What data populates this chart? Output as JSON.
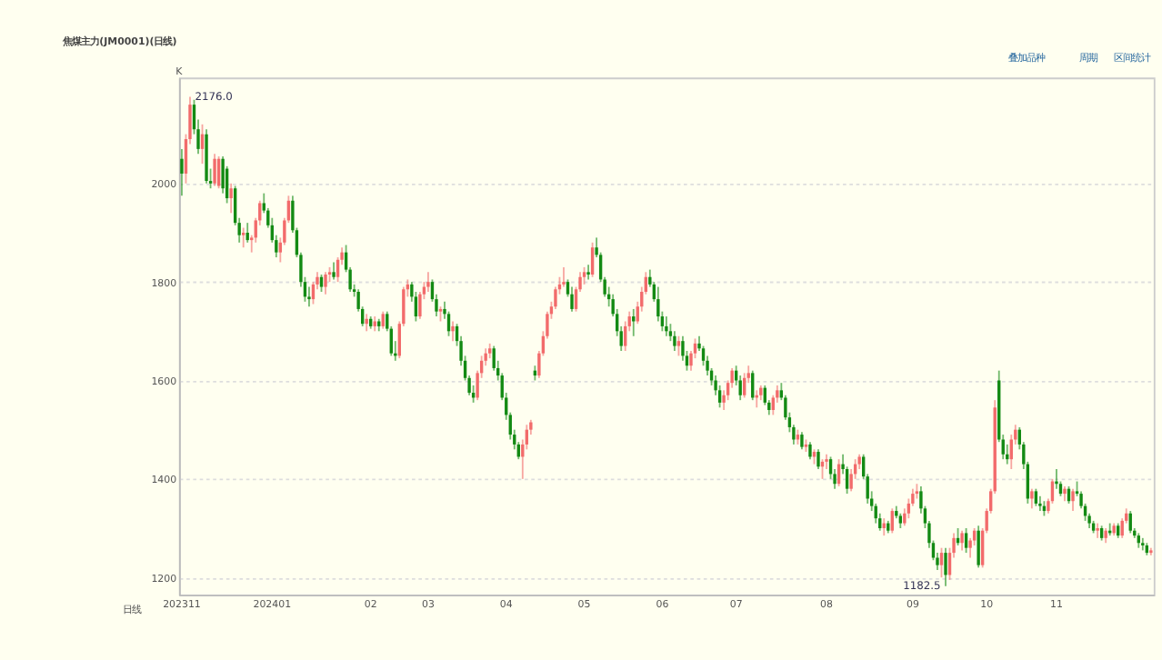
{
  "chart_data": {
    "type": "candlestick",
    "title": "焦煤主力(JM0001)(日线)",
    "annotations": [
      "K",
      "日线",
      "叠加品种",
      "周期",
      "区间统计",
      "2176.0",
      "1182.5"
    ],
    "colors": [
      "#138a13",
      "#f26b6b",
      "#f26b6b",
      "#138a13",
      "#138a13",
      "#f26b6b",
      "#138a13",
      "#138a13",
      "#f26b6b",
      "#f26b6b",
      "#138a13",
      "#138a13",
      "#f26b6b",
      "#138a13",
      "#138a13",
      "#f26b6b",
      "#138a13",
      "#f26b6b",
      "#f26b6b",
      "#f26b6b",
      "#138a13",
      "#138a13",
      "#138a13",
      "#138a13",
      "#f26b6b",
      "#f26b6b",
      "#f26b6b",
      "#138a13",
      "#138a13",
      "#138a13",
      "#138a13",
      "#138a13",
      "#f26b6b",
      "#f26b6b",
      "#138a13",
      "#f26b6b",
      "#f26b6b",
      "#138a13",
      "#f26b6b",
      "#f26b6b",
      "#138a13",
      "#138a13",
      "#138a13",
      "#138a13",
      "#138a13",
      "#f26b6b",
      "#138a13",
      "#f26b6b",
      "#138a13",
      "#f26b6b",
      "#138a13",
      "#138a13",
      "#138a13",
      "#f26b6b",
      "#f26b6b",
      "#f26b6b",
      "#138a13",
      "#138a13",
      "#f26b6b",
      "#f26b6b",
      "#f26b6b",
      "#138a13",
      "#138a13",
      "#f26b6b",
      "#138a13",
      "#138a13",
      "#f26b6b",
      "#138a13",
      "#138a13",
      "#138a13",
      "#138a13",
      "#138a13",
      "#f26b6b",
      "#f26b6b",
      "#f26b6b",
      "#f26b6b",
      "#138a13",
      "#138a13",
      "#138a13",
      "#138a13",
      "#138a13",
      "#138a13",
      "#138a13",
      "#f26b6b",
      "#f26b6b",
      "#f26b6b",
      "#138a13",
      "#f26b6b",
      "#f26b6b",
      "#f26b6b",
      "#f26b6b",
      "#f26b6b",
      "#f26b6b",
      "#f26b6b",
      "#138a13",
      "#138a13",
      "#f26b6b",
      "#f26b6b",
      "#f26b6b",
      "#138a13",
      "#f26b6b",
      "#138a13",
      "#138a13",
      "#138a13",
      "#138a13",
      "#138a13",
      "#138a13",
      "#138a13",
      "#f26b6b",
      "#f26b6b",
      "#138a13",
      "#f26b6b",
      "#f26b6b",
      "#f26b6b",
      "#138a13",
      "#138a13",
      "#138a13",
      "#138a13",
      "#138a13",
      "#138a13",
      "#138a13",
      "#f26b6b",
      "#138a13",
      "#138a13",
      "#f26b6b",
      "#f26b6b",
      "#138a13",
      "#138a13",
      "#138a13",
      "#138a13",
      "#138a13",
      "#138a13",
      "#f26b6b",
      "#f26b6b",
      "#f26b6b",
      "#138a13",
      "#138a13",
      "#f26b6b",
      "#f26b6b",
      "#138a13",
      "#f26b6b",
      "#f26b6b",
      "#138a13",
      "#138a13",
      "#f26b6b",
      "#f26b6b",
      "#138a13",
      "#138a13",
      "#138a13",
      "#138a13",
      "#f26b6b",
      "#138a13",
      "#f26b6b",
      "#138a13",
      "#f26b6b",
      "#138a13",
      "#f26b6b",
      "#f26b6b",
      "#138a13",
      "#138a13",
      "#f26b6b",
      "#138a13",
      "#138a13",
      "#f26b6b",
      "#f26b6b",
      "#f26b6b",
      "#138a13",
      "#138a13",
      "#138a13",
      "#138a13",
      "#138a13",
      "#f26b6b",
      "#138a13",
      "#f26b6b",
      "#138a13",
      "#138a13",
      "#f26b6b",
      "#f26b6b",
      "#f26b6b",
      "#f26b6b",
      "#138a13",
      "#138a13",
      "#138a13",
      "#138a13",
      "#138a13",
      "#f26b6b",
      "#138a13",
      "#f26b6b",
      "#f26b6b",
      "#138a13",
      "#f26b6b",
      "#138a13",
      "#f26b6b",
      "#f26b6b",
      "#138a13",
      "#f26b6b",
      "#f26b6b",
      "#f26b6b",
      "#f26b6b",
      "#138a13",
      "#138a13",
      "#138a13",
      "#f26b6b",
      "#f26b6b",
      "#138a13",
      "#138a13",
      "#138a13",
      "#f26b6b",
      "#138a13",
      "#138a13",
      "#138a13",
      "#f26b6b",
      "#f26b6b",
      "#138a13",
      "#138a13",
      "#f26b6b",
      "#138a13",
      "#f26b6b",
      "#138a13",
      "#138a13",
      "#138a13",
      "#138a13",
      "#138a13",
      "#f26b6b",
      "#138a13",
      "#f26b6b",
      "#138a13",
      "#f26b6b",
      "#138a13",
      "#f26b6b",
      "#f26b6b",
      "#138a13",
      "#138a13",
      "#138a13",
      "#138a13",
      "#138a13",
      "#f26b6b"
    ],
    "ylim": [
      1165,
      2215
    ],
    "yticks": [
      1200,
      1400,
      1600,
      1800,
      2000
    ],
    "grid": "y",
    "categories": [
      "202311",
      null,
      null,
      null,
      null,
      null,
      null,
      null,
      null,
      null,
      null,
      null,
      null,
      null,
      null,
      null,
      null,
      null,
      null,
      null,
      null,
      null,
      "202401",
      null,
      null,
      null,
      null,
      null,
      null,
      null,
      null,
      null,
      null,
      null,
      null,
      null,
      null,
      null,
      null,
      null,
      null,
      null,
      null,
      null,
      null,
      null,
      "02",
      null,
      null,
      null,
      null,
      null,
      null,
      null,
      null,
      null,
      null,
      null,
      null,
      null,
      "03",
      null,
      null,
      null,
      null,
      null,
      null,
      null,
      null,
      null,
      null,
      null,
      null,
      null,
      null,
      null,
      null,
      null,
      null,
      "04",
      null,
      null,
      null,
      null,
      null,
      null,
      null,
      null,
      null,
      null,
      null,
      null,
      null,
      null,
      null,
      null,
      null,
      null,
      "05",
      null,
      null,
      null,
      null,
      null,
      null,
      null,
      null,
      null,
      null,
      null,
      null,
      null,
      null,
      null,
      null,
      null,
      null,
      "06",
      null,
      null,
      null,
      null,
      null,
      null,
      null,
      null,
      null,
      null,
      null,
      null,
      null,
      null,
      null,
      null,
      null,
      "07",
      null,
      null,
      null,
      null,
      null,
      null,
      null,
      null,
      null,
      null,
      null,
      null,
      null,
      null,
      null,
      null,
      null,
      null,
      null,
      null,
      null,
      "08",
      null,
      null,
      null,
      null,
      null,
      null,
      null,
      null,
      null,
      null,
      null,
      null,
      null,
      null,
      null,
      null,
      null,
      null,
      null,
      null,
      "09",
      null,
      null,
      null,
      null,
      null,
      null,
      null,
      null,
      null,
      null,
      null,
      null,
      null,
      null,
      null,
      null,
      null,
      "10",
      null,
      null,
      null,
      null,
      null,
      null,
      null,
      null,
      null,
      null,
      null,
      null,
      null,
      null,
      null,
      null,
      "11",
      null,
      null,
      null,
      null,
      null,
      null,
      null,
      null,
      null,
      null,
      null,
      null,
      null,
      null,
      null,
      null,
      null,
      null,
      null,
      null,
      null,
      null,
      null
    ],
    "ohlc": [
      [
        2050,
        2070,
        1975,
        2020
      ],
      [
        2020,
        2100,
        2000,
        2090
      ],
      [
        2090,
        2176,
        2080,
        2160
      ],
      [
        2160,
        2170,
        2100,
        2110
      ],
      [
        2110,
        2130,
        2060,
        2070
      ],
      [
        2070,
        2120,
        2040,
        2100
      ],
      [
        2100,
        2110,
        2000,
        2005
      ],
      [
        2005,
        2030,
        1990,
        2000
      ],
      [
        2000,
        2060,
        1995,
        2050
      ],
      [
        1995,
        2055,
        1990,
        2050
      ],
      [
        2050,
        2055,
        1980,
        1990
      ],
      [
        2030,
        2035,
        1960,
        1970
      ],
      [
        1970,
        2000,
        1940,
        1990
      ],
      [
        1990,
        1995,
        1915,
        1920
      ],
      [
        1920,
        1930,
        1880,
        1895
      ],
      [
        1895,
        1910,
        1870,
        1900
      ],
      [
        1900,
        1920,
        1880,
        1885
      ],
      [
        1885,
        1895,
        1860,
        1890
      ],
      [
        1890,
        1930,
        1880,
        1925
      ],
      [
        1925,
        1965,
        1915,
        1960
      ],
      [
        1960,
        1980,
        1940,
        1945
      ],
      [
        1945,
        1950,
        1910,
        1915
      ],
      [
        1915,
        1930,
        1880,
        1885
      ],
      [
        1885,
        1895,
        1850,
        1860
      ],
      [
        1860,
        1890,
        1840,
        1880
      ],
      [
        1880,
        1930,
        1875,
        1925
      ],
      [
        1925,
        1975,
        1920,
        1965
      ],
      [
        1965,
        1975,
        1900,
        1905
      ],
      [
        1905,
        1910,
        1850,
        1855
      ],
      [
        1855,
        1860,
        1790,
        1800
      ],
      [
        1800,
        1810,
        1760,
        1770
      ],
      [
        1770,
        1790,
        1750,
        1765
      ],
      [
        1765,
        1800,
        1755,
        1795
      ],
      [
        1795,
        1820,
        1785,
        1810
      ],
      [
        1810,
        1815,
        1780,
        1790
      ],
      [
        1790,
        1820,
        1775,
        1815
      ],
      [
        1815,
        1830,
        1800,
        1820
      ],
      [
        1820,
        1840,
        1805,
        1810
      ],
      [
        1810,
        1850,
        1800,
        1845
      ],
      [
        1845,
        1870,
        1835,
        1860
      ],
      [
        1860,
        1875,
        1820,
        1825
      ],
      [
        1825,
        1830,
        1780,
        1785
      ],
      [
        1785,
        1795,
        1770,
        1780
      ],
      [
        1780,
        1785,
        1740,
        1745
      ],
      [
        1745,
        1750,
        1710,
        1715
      ],
      [
        1715,
        1735,
        1700,
        1725
      ],
      [
        1725,
        1730,
        1705,
        1710
      ],
      [
        1710,
        1730,
        1700,
        1720
      ],
      [
        1720,
        1725,
        1700,
        1710
      ],
      [
        1710,
        1740,
        1705,
        1735
      ],
      [
        1735,
        1740,
        1700,
        1705
      ],
      [
        1705,
        1710,
        1650,
        1655
      ],
      [
        1655,
        1680,
        1640,
        1650
      ],
      [
        1650,
        1720,
        1645,
        1715
      ],
      [
        1715,
        1790,
        1710,
        1785
      ],
      [
        1785,
        1805,
        1770,
        1795
      ],
      [
        1795,
        1800,
        1760,
        1770
      ],
      [
        1770,
        1780,
        1720,
        1730
      ],
      [
        1730,
        1780,
        1725,
        1775
      ],
      [
        1775,
        1800,
        1765,
        1790
      ],
      [
        1790,
        1820,
        1780,
        1800
      ],
      [
        1800,
        1805,
        1760,
        1765
      ],
      [
        1765,
        1775,
        1730,
        1740
      ],
      [
        1740,
        1750,
        1720,
        1745
      ],
      [
        1745,
        1760,
        1725,
        1735
      ],
      [
        1735,
        1740,
        1690,
        1700
      ],
      [
        1700,
        1720,
        1680,
        1710
      ],
      [
        1710,
        1715,
        1670,
        1680
      ],
      [
        1680,
        1690,
        1630,
        1640
      ],
      [
        1640,
        1650,
        1600,
        1605
      ],
      [
        1605,
        1610,
        1570,
        1575
      ],
      [
        1575,
        1590,
        1555,
        1565
      ],
      [
        1565,
        1620,
        1560,
        1615
      ],
      [
        1615,
        1650,
        1605,
        1640
      ],
      [
        1640,
        1665,
        1630,
        1655
      ],
      [
        1655,
        1675,
        1645,
        1665
      ],
      [
        1665,
        1670,
        1620,
        1625
      ],
      [
        1625,
        1640,
        1600,
        1610
      ],
      [
        1610,
        1615,
        1560,
        1565
      ],
      [
        1565,
        1575,
        1520,
        1530
      ],
      [
        1530,
        1535,
        1480,
        1490
      ],
      [
        1490,
        1500,
        1460,
        1470
      ],
      [
        1470,
        1475,
        1440,
        1445
      ],
      [
        1445,
        1480,
        1400,
        1470
      ],
      [
        1470,
        1510,
        1460,
        1500
      ],
      [
        1500,
        1520,
        1490,
        1515
      ],
      [
        1620,
        1630,
        1600,
        1610
      ],
      [
        1610,
        1660,
        1605,
        1655
      ],
      [
        1655,
        1700,
        1650,
        1690
      ],
      [
        1690,
        1740,
        1685,
        1735
      ],
      [
        1735,
        1760,
        1725,
        1750
      ],
      [
        1750,
        1790,
        1745,
        1785
      ],
      [
        1785,
        1810,
        1775,
        1795
      ],
      [
        1795,
        1830,
        1790,
        1800
      ],
      [
        1800,
        1805,
        1770,
        1775
      ],
      [
        1775,
        1790,
        1740,
        1745
      ],
      [
        1745,
        1790,
        1740,
        1785
      ],
      [
        1785,
        1820,
        1780,
        1810
      ],
      [
        1810,
        1830,
        1795,
        1820
      ],
      [
        1820,
        1835,
        1805,
        1815
      ],
      [
        1815,
        1880,
        1810,
        1870
      ],
      [
        1870,
        1890,
        1850,
        1855
      ],
      [
        1855,
        1860,
        1800,
        1805
      ],
      [
        1805,
        1810,
        1770,
        1775
      ],
      [
        1775,
        1790,
        1750,
        1765
      ],
      [
        1765,
        1775,
        1730,
        1735
      ],
      [
        1735,
        1745,
        1690,
        1700
      ],
      [
        1700,
        1710,
        1660,
        1670
      ],
      [
        1670,
        1720,
        1660,
        1710
      ],
      [
        1710,
        1740,
        1700,
        1730
      ],
      [
        1730,
        1745,
        1690,
        1720
      ],
      [
        1720,
        1760,
        1715,
        1750
      ],
      [
        1750,
        1790,
        1740,
        1780
      ],
      [
        1780,
        1820,
        1775,
        1810
      ],
      [
        1810,
        1825,
        1790,
        1795
      ],
      [
        1795,
        1800,
        1760,
        1765
      ],
      [
        1765,
        1790,
        1720,
        1730
      ],
      [
        1730,
        1740,
        1700,
        1710
      ],
      [
        1710,
        1730,
        1690,
        1700
      ],
      [
        1700,
        1715,
        1680,
        1690
      ],
      [
        1690,
        1700,
        1660,
        1670
      ],
      [
        1670,
        1690,
        1650,
        1680
      ],
      [
        1680,
        1690,
        1640,
        1650
      ],
      [
        1650,
        1660,
        1620,
        1630
      ],
      [
        1630,
        1660,
        1620,
        1655
      ],
      [
        1655,
        1685,
        1645,
        1675
      ],
      [
        1675,
        1690,
        1660,
        1665
      ],
      [
        1665,
        1670,
        1630,
        1640
      ],
      [
        1640,
        1650,
        1610,
        1620
      ],
      [
        1620,
        1625,
        1590,
        1600
      ],
      [
        1600,
        1610,
        1570,
        1580
      ],
      [
        1580,
        1590,
        1545,
        1555
      ],
      [
        1555,
        1580,
        1540,
        1570
      ],
      [
        1570,
        1600,
        1560,
        1595
      ],
      [
        1595,
        1625,
        1585,
        1620
      ],
      [
        1620,
        1630,
        1590,
        1600
      ],
      [
        1600,
        1610,
        1560,
        1570
      ],
      [
        1570,
        1615,
        1565,
        1605
      ],
      [
        1605,
        1630,
        1595,
        1615
      ],
      [
        1615,
        1620,
        1560,
        1565
      ],
      [
        1565,
        1580,
        1545,
        1570
      ],
      [
        1570,
        1590,
        1560,
        1585
      ],
      [
        1585,
        1590,
        1550,
        1555
      ],
      [
        1555,
        1560,
        1530,
        1540
      ],
      [
        1540,
        1570,
        1530,
        1565
      ],
      [
        1565,
        1590,
        1555,
        1580
      ],
      [
        1580,
        1595,
        1560,
        1565
      ],
      [
        1565,
        1570,
        1520,
        1525
      ],
      [
        1525,
        1535,
        1495,
        1505
      ],
      [
        1505,
        1510,
        1470,
        1480
      ],
      [
        1480,
        1500,
        1470,
        1490
      ],
      [
        1490,
        1495,
        1460,
        1465
      ],
      [
        1465,
        1480,
        1455,
        1470
      ],
      [
        1470,
        1475,
        1440,
        1445
      ],
      [
        1445,
        1460,
        1430,
        1455
      ],
      [
        1455,
        1460,
        1420,
        1425
      ],
      [
        1425,
        1440,
        1400,
        1435
      ],
      [
        1435,
        1450,
        1420,
        1440
      ],
      [
        1440,
        1445,
        1400,
        1410
      ],
      [
        1410,
        1420,
        1380,
        1390
      ],
      [
        1390,
        1440,
        1385,
        1430
      ],
      [
        1430,
        1450,
        1410,
        1420
      ],
      [
        1420,
        1425,
        1370,
        1380
      ],
      [
        1380,
        1420,
        1375,
        1410
      ],
      [
        1410,
        1440,
        1400,
        1430
      ],
      [
        1430,
        1450,
        1420,
        1445
      ],
      [
        1445,
        1450,
        1400,
        1405
      ],
      [
        1405,
        1410,
        1350,
        1360
      ],
      [
        1360,
        1375,
        1335,
        1345
      ],
      [
        1345,
        1350,
        1310,
        1320
      ],
      [
        1320,
        1330,
        1295,
        1300
      ],
      [
        1300,
        1320,
        1285,
        1310
      ],
      [
        1310,
        1315,
        1290,
        1295
      ],
      [
        1295,
        1340,
        1290,
        1335
      ],
      [
        1335,
        1345,
        1320,
        1325
      ],
      [
        1325,
        1330,
        1300,
        1310
      ],
      [
        1310,
        1340,
        1305,
        1330
      ],
      [
        1330,
        1360,
        1320,
        1350
      ],
      [
        1350,
        1380,
        1345,
        1370
      ],
      [
        1370,
        1390,
        1360,
        1375
      ],
      [
        1375,
        1385,
        1330,
        1340
      ],
      [
        1340,
        1345,
        1300,
        1310
      ],
      [
        1310,
        1315,
        1260,
        1270
      ],
      [
        1270,
        1275,
        1235,
        1240
      ],
      [
        1240,
        1250,
        1215,
        1225
      ],
      [
        1225,
        1260,
        1200,
        1250
      ],
      [
        1250,
        1260,
        1182.5,
        1205
      ],
      [
        1205,
        1260,
        1195,
        1250
      ],
      [
        1250,
        1290,
        1240,
        1280
      ],
      [
        1280,
        1300,
        1265,
        1270
      ],
      [
        1270,
        1295,
        1255,
        1290
      ],
      [
        1290,
        1300,
        1250,
        1260
      ],
      [
        1260,
        1280,
        1240,
        1275
      ],
      [
        1275,
        1300,
        1265,
        1295
      ],
      [
        1295,
        1305,
        1220,
        1225
      ],
      [
        1225,
        1300,
        1220,
        1295
      ],
      [
        1295,
        1340,
        1290,
        1335
      ],
      [
        1335,
        1380,
        1330,
        1375
      ],
      [
        1375,
        1560,
        1370,
        1545
      ],
      [
        1600,
        1620,
        1475,
        1480
      ],
      [
        1480,
        1490,
        1440,
        1450
      ],
      [
        1450,
        1470,
        1430,
        1440
      ],
      [
        1440,
        1490,
        1420,
        1480
      ],
      [
        1480,
        1510,
        1470,
        1500
      ],
      [
        1500,
        1505,
        1460,
        1470
      ],
      [
        1470,
        1475,
        1420,
        1430
      ],
      [
        1430,
        1435,
        1350,
        1360
      ],
      [
        1360,
        1380,
        1340,
        1375
      ],
      [
        1375,
        1380,
        1345,
        1350
      ],
      [
        1350,
        1365,
        1335,
        1345
      ],
      [
        1345,
        1355,
        1325,
        1335
      ],
      [
        1335,
        1360,
        1330,
        1355
      ],
      [
        1355,
        1400,
        1350,
        1395
      ],
      [
        1395,
        1420,
        1380,
        1390
      ],
      [
        1390,
        1395,
        1365,
        1370
      ],
      [
        1370,
        1385,
        1355,
        1380
      ],
      [
        1380,
        1385,
        1350,
        1355
      ],
      [
        1355,
        1380,
        1335,
        1375
      ],
      [
        1375,
        1395,
        1365,
        1370
      ],
      [
        1370,
        1375,
        1340,
        1345
      ],
      [
        1345,
        1350,
        1315,
        1325
      ],
      [
        1325,
        1330,
        1300,
        1310
      ],
      [
        1310,
        1315,
        1290,
        1295
      ],
      [
        1295,
        1310,
        1280,
        1300
      ],
      [
        1300,
        1305,
        1275,
        1280
      ],
      [
        1280,
        1300,
        1270,
        1295
      ],
      [
        1295,
        1310,
        1285,
        1290
      ],
      [
        1290,
        1310,
        1285,
        1305
      ],
      [
        1305,
        1310,
        1280,
        1285
      ],
      [
        1285,
        1320,
        1280,
        1315
      ],
      [
        1315,
        1340,
        1310,
        1330
      ],
      [
        1330,
        1335,
        1290,
        1295
      ],
      [
        1295,
        1300,
        1280,
        1285
      ],
      [
        1285,
        1290,
        1260,
        1270
      ],
      [
        1270,
        1280,
        1255,
        1265
      ],
      [
        1265,
        1270,
        1245,
        1250
      ],
      [
        1250,
        1260,
        1245,
        1255
      ]
    ]
  }
}
